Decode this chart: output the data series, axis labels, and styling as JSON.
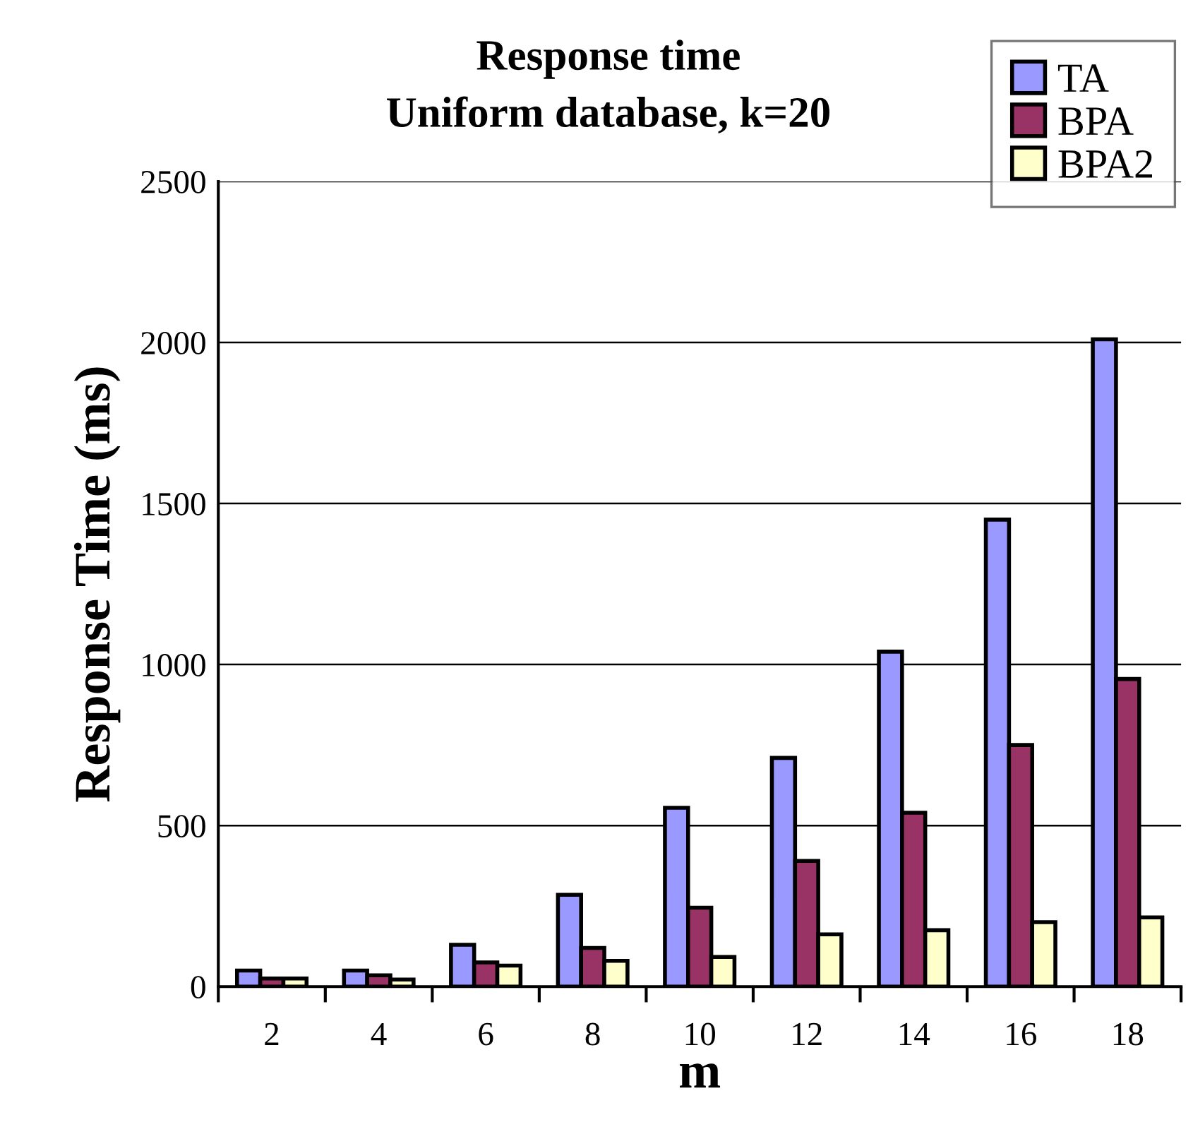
{
  "chart_data": {
    "type": "bar",
    "title": "Response time\nUniform database, k=20",
    "xlabel": "m",
    "ylabel": "Response Time (ms)",
    "categories": [
      "2",
      "4",
      "6",
      "8",
      "10",
      "12",
      "14",
      "16",
      "18"
    ],
    "series": [
      {
        "name": "TA",
        "color": "#9999ff",
        "values": [
          50,
          50,
          130,
          285,
          555,
          710,
          1040,
          1450,
          2010
        ]
      },
      {
        "name": "BPA",
        "color": "#993366",
        "values": [
          25,
          35,
          75,
          120,
          245,
          390,
          540,
          750,
          955
        ]
      },
      {
        "name": "BPA2",
        "color": "#ffffcc",
        "values": [
          25,
          22,
          65,
          80,
          92,
          162,
          175,
          200,
          215
        ]
      }
    ],
    "ylim": [
      0,
      2500
    ],
    "yticks": [
      0,
      500,
      1000,
      1500,
      2000,
      2500
    ],
    "grid": "y",
    "legend": "top right"
  }
}
